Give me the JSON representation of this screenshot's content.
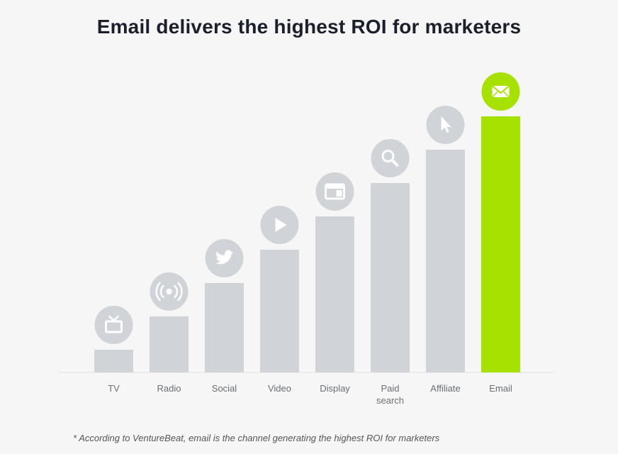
{
  "title": "Email delivers the highest ROI for marketers",
  "footnote": "* According to VentureBeat, email is the channel generating the highest ROI for marketers",
  "colors": {
    "bar": "#d0d3d8",
    "highlight": "#a6e100",
    "icon_bg": "#d0d3d8",
    "icon_fg": "#ffffff",
    "label": "#6a6e75",
    "axis": "#e2e2e2"
  },
  "chart_data": {
    "type": "bar",
    "title": "Email delivers the highest ROI for marketers",
    "xlabel": "",
    "ylabel": "",
    "ylim": [
      0,
      8
    ],
    "grid": false,
    "categories": [
      "TV",
      "Radio",
      "Social",
      "Video",
      "Display",
      "Paid search",
      "Affiliate",
      "Email"
    ],
    "category_lines": [
      [
        "TV"
      ],
      [
        "Radio"
      ],
      [
        "Social"
      ],
      [
        "Video"
      ],
      [
        "Display"
      ],
      [
        "Paid",
        "search"
      ],
      [
        "Affiliate"
      ],
      [
        "Email"
      ]
    ],
    "values": [
      1,
      2,
      3,
      4,
      5,
      6,
      7,
      8
    ],
    "icons": [
      "tv-icon",
      "radio-icon",
      "twitter-icon",
      "play-icon",
      "display-icon",
      "search-icon",
      "cursor-icon",
      "envelope-icon"
    ],
    "highlight": "Email"
  }
}
